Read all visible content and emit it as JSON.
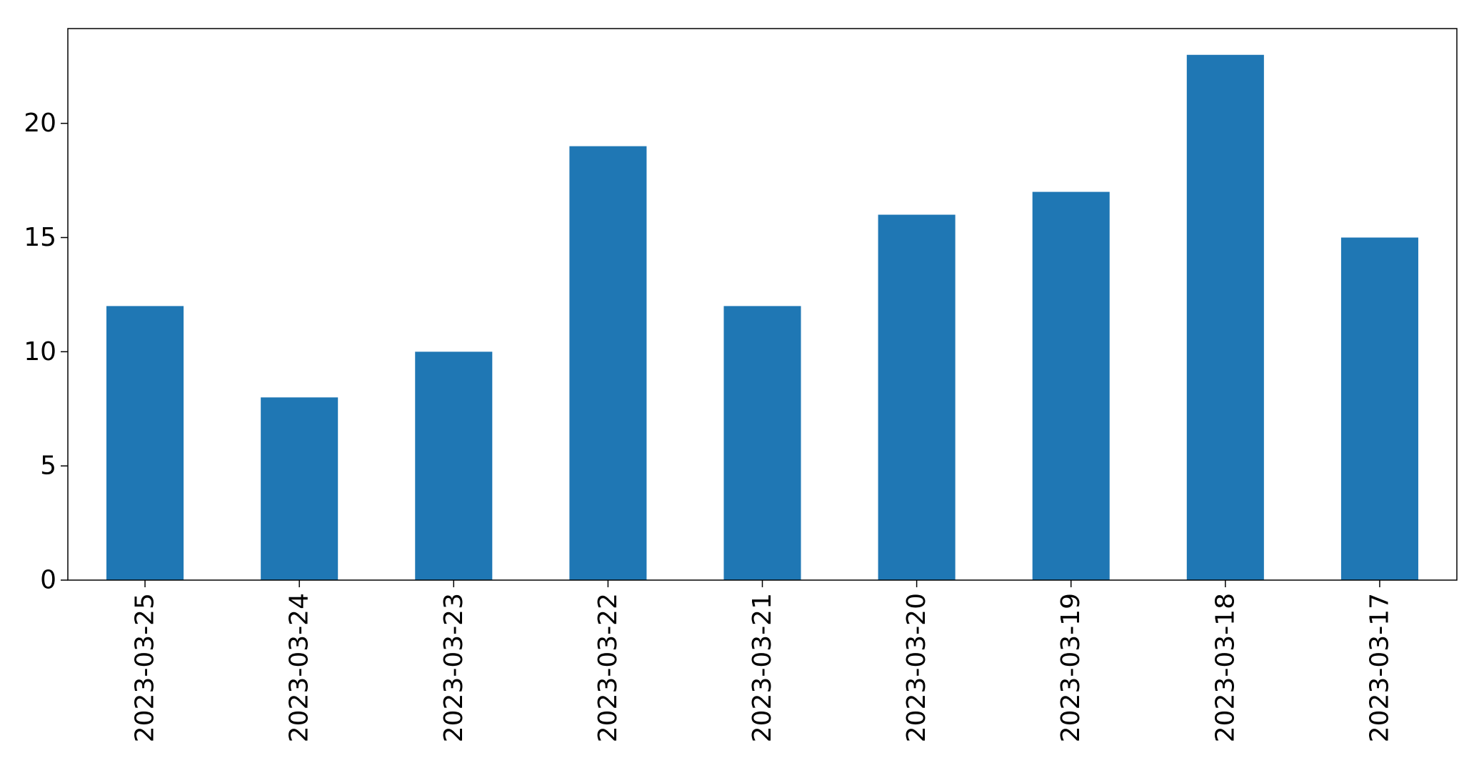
{
  "chart_data": {
    "type": "bar",
    "categories": [
      "2023-03-25",
      "2023-03-24",
      "2023-03-23",
      "2023-03-22",
      "2023-03-21",
      "2023-03-20",
      "2023-03-19",
      "2023-03-18",
      "2023-03-17"
    ],
    "values": [
      12,
      8,
      10,
      19,
      12,
      16,
      17,
      23,
      15
    ],
    "title": "",
    "xlabel": "",
    "ylabel": "",
    "ylim": [
      0,
      24.15
    ],
    "yticks": [
      0,
      5,
      10,
      15,
      20
    ],
    "ytick_labels": [
      "0",
      "5",
      "10",
      "15",
      "20"
    ],
    "grid": false,
    "bar_color": "#1f77b4"
  }
}
